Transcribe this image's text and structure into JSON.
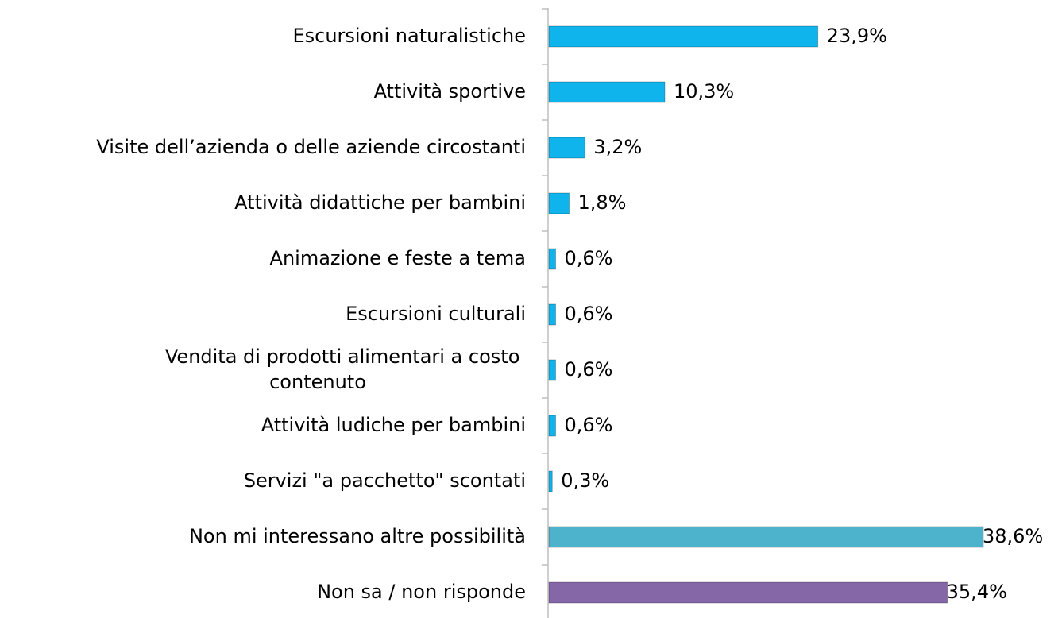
{
  "chart_data": {
    "type": "bar",
    "orientation": "horizontal",
    "categories": [
      "Escursioni naturalistiche",
      "Attività sportive",
      "Visite dell’azienda o delle aziende circostanti",
      "Attività didattiche per bambini",
      "Animazione e feste a tema",
      "Escursioni culturali",
      "Vendita di prodotti alimentari a costo contenuto",
      "Attività ludiche per bambini",
      "Servizi \"a pacchetto\" scontati",
      "Non mi interessano altre possibilità",
      "Non sa / non risponde"
    ],
    "values": [
      23.9,
      10.3,
      3.2,
      1.8,
      0.6,
      0.6,
      0.6,
      0.6,
      0.3,
      38.6,
      35.4
    ],
    "value_labels": [
      "23,9%",
      "10,3%",
      "3,2%",
      "1,8%",
      "0,6%",
      "0,6%",
      "0,6%",
      "0,6%",
      "0,3%",
      "38,6%",
      "35,4%"
    ],
    "colors": [
      "#10b4ec",
      "#10b4ec",
      "#10b4ec",
      "#10b4ec",
      "#10b4ec",
      "#10b4ec",
      "#10b4ec",
      "#10b4ec",
      "#10b4ec",
      "#4db3cd",
      "#8567a8"
    ]
  }
}
